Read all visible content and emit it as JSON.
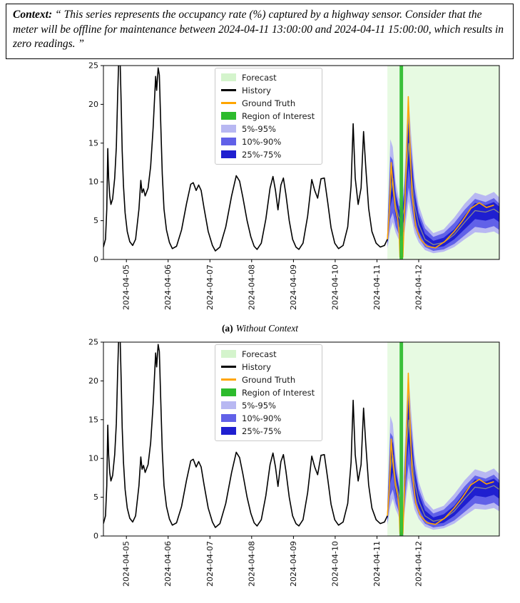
{
  "context": {
    "label": "Context:",
    "text": "“ This series represents the occupancy rate (%) captured by a highway sensor. Consider that the meter will be offline for maintenance between 2024-04-11 13:00:00 and 2024-04-11 15:00:00, which results in zero readings. ”"
  },
  "captions": {
    "a": {
      "label": "(a)",
      "text": "Without Context"
    }
  },
  "legend": {
    "items": [
      {
        "label": "Forecast",
        "type": "patch",
        "color": "#d4f4cc"
      },
      {
        "label": "History",
        "type": "line",
        "color": "#000000"
      },
      {
        "label": "Ground Truth",
        "type": "line",
        "color": "#ffa500"
      },
      {
        "label": "Region of Interest",
        "type": "patch",
        "color": "#2dbb2d"
      },
      {
        "label": "5%-95%",
        "type": "patch",
        "color": "#b8b8f2"
      },
      {
        "label": "10%-90%",
        "type": "patch",
        "color": "#6161e8"
      },
      {
        "label": "25%-75%",
        "type": "patch",
        "color": "#1f1fd0"
      }
    ]
  },
  "chart_data": {
    "type": "line",
    "shared": {
      "ylabel": "",
      "xlabel": "",
      "y_domain": [
        0,
        25
      ],
      "y_ticks": [
        0,
        5,
        10,
        15,
        20,
        25
      ],
      "x_domain": [
        0.45,
        9.93
      ],
      "x_ticks": [
        {
          "t": 1,
          "label": "2024-04-05"
        },
        {
          "t": 2,
          "label": "2024-04-06"
        },
        {
          "t": 3,
          "label": "2024-04-07"
        },
        {
          "t": 4,
          "label": "2024-04-08"
        },
        {
          "t": 5,
          "label": "2024-04-09"
        },
        {
          "t": 6,
          "label": "2024-04-10"
        },
        {
          "t": 7,
          "label": "2024-04-11"
        },
        {
          "t": 8,
          "label": "2024-04-12"
        }
      ],
      "forecast_span": [
        7.25,
        9.93
      ],
      "roi_span": [
        7.5417,
        7.625
      ],
      "colors": {
        "forecast_bg": "#e7fae2",
        "roi": "#2dbb2d",
        "history": "#000000",
        "ground_truth": "#ffa500",
        "q5_95": "#b8b8f2",
        "q10_90": "#6161e8",
        "q25_75": "#1f1fd0",
        "median": "#8a8a8a"
      },
      "history": [
        [
          0.45,
          1.6
        ],
        [
          0.5,
          2.6
        ],
        [
          0.53,
          6.5
        ],
        [
          0.555,
          14.3
        ],
        [
          0.575,
          10.5
        ],
        [
          0.6,
          8.2
        ],
        [
          0.63,
          7.1
        ],
        [
          0.67,
          7.8
        ],
        [
          0.72,
          10.5
        ],
        [
          0.76,
          14.5
        ],
        [
          0.79,
          21.0
        ],
        [
          0.815,
          25.6
        ],
        [
          0.85,
          25.6
        ],
        [
          0.875,
          20.0
        ],
        [
          0.9,
          14.0
        ],
        [
          0.93,
          9.5
        ],
        [
          0.97,
          6.0
        ],
        [
          1.02,
          3.6
        ],
        [
          1.08,
          2.3
        ],
        [
          1.15,
          1.8
        ],
        [
          1.22,
          2.6
        ],
        [
          1.3,
          6.5
        ],
        [
          1.345,
          10.2
        ],
        [
          1.375,
          8.6
        ],
        [
          1.41,
          9.1
        ],
        [
          1.45,
          8.2
        ],
        [
          1.52,
          9.2
        ],
        [
          1.58,
          12.0
        ],
        [
          1.64,
          17.0
        ],
        [
          1.7,
          23.6
        ],
        [
          1.725,
          21.8
        ],
        [
          1.76,
          24.7
        ],
        [
          1.79,
          23.8
        ],
        [
          1.82,
          18.0
        ],
        [
          1.86,
          11.0
        ],
        [
          1.9,
          6.5
        ],
        [
          1.96,
          3.8
        ],
        [
          2.03,
          2.2
        ],
        [
          2.1,
          1.4
        ],
        [
          2.2,
          1.7
        ],
        [
          2.32,
          3.8
        ],
        [
          2.44,
          7.2
        ],
        [
          2.54,
          9.7
        ],
        [
          2.6,
          9.9
        ],
        [
          2.67,
          8.9
        ],
        [
          2.73,
          9.6
        ],
        [
          2.79,
          8.9
        ],
        [
          2.86,
          6.6
        ],
        [
          2.96,
          3.6
        ],
        [
          3.06,
          1.8
        ],
        [
          3.13,
          1.1
        ],
        [
          3.24,
          1.6
        ],
        [
          3.38,
          4.2
        ],
        [
          3.52,
          8.2
        ],
        [
          3.63,
          10.8
        ],
        [
          3.71,
          10.1
        ],
        [
          3.79,
          8.0
        ],
        [
          3.89,
          5.0
        ],
        [
          3.98,
          2.9
        ],
        [
          4.06,
          1.7
        ],
        [
          4.13,
          1.3
        ],
        [
          4.23,
          2.1
        ],
        [
          4.34,
          5.2
        ],
        [
          4.44,
          9.2
        ],
        [
          4.51,
          10.7
        ],
        [
          4.57,
          8.9
        ],
        [
          4.63,
          6.4
        ],
        [
          4.7,
          9.6
        ],
        [
          4.76,
          10.5
        ],
        [
          4.82,
          8.4
        ],
        [
          4.9,
          5.0
        ],
        [
          4.98,
          2.6
        ],
        [
          5.06,
          1.6
        ],
        [
          5.13,
          1.3
        ],
        [
          5.23,
          2.1
        ],
        [
          5.34,
          5.6
        ],
        [
          5.44,
          10.3
        ],
        [
          5.51,
          8.9
        ],
        [
          5.58,
          7.9
        ],
        [
          5.66,
          10.4
        ],
        [
          5.74,
          10.5
        ],
        [
          5.82,
          7.4
        ],
        [
          5.9,
          4.1
        ],
        [
          5.99,
          2.1
        ],
        [
          6.08,
          1.4
        ],
        [
          6.19,
          1.8
        ],
        [
          6.3,
          4.2
        ],
        [
          6.38,
          9.5
        ],
        [
          6.43,
          17.5
        ],
        [
          6.48,
          10.5
        ],
        [
          6.55,
          7.1
        ],
        [
          6.62,
          9.2
        ],
        [
          6.68,
          16.5
        ],
        [
          6.73,
          12.0
        ],
        [
          6.8,
          6.6
        ],
        [
          6.88,
          3.6
        ],
        [
          6.98,
          2.1
        ],
        [
          7.08,
          1.6
        ],
        [
          7.18,
          1.8
        ],
        [
          7.25,
          2.6
        ]
      ],
      "ground_truth": [
        [
          7.25,
          2.6
        ],
        [
          7.3,
          6.5
        ],
        [
          7.34,
          12.5
        ],
        [
          7.39,
          9.0
        ],
        [
          7.44,
          6.6
        ],
        [
          7.5,
          5.1
        ],
        [
          7.53,
          3.5
        ],
        [
          7.55,
          0.3
        ],
        [
          7.62,
          0.3
        ],
        [
          7.66,
          6.0
        ],
        [
          7.71,
          13.5
        ],
        [
          7.75,
          21.0
        ],
        [
          7.79,
          15.0
        ],
        [
          7.84,
          8.5
        ],
        [
          7.93,
          4.2
        ],
        [
          8.04,
          2.6
        ],
        [
          8.2,
          1.7
        ],
        [
          8.4,
          1.5
        ],
        [
          8.62,
          2.3
        ],
        [
          8.85,
          3.6
        ],
        [
          9.05,
          5.0
        ],
        [
          9.25,
          6.6
        ],
        [
          9.45,
          7.3
        ],
        [
          9.62,
          6.7
        ],
        [
          9.8,
          7.0
        ]
      ]
    },
    "charts": [
      {
        "name": "without_context",
        "caption": "(a) Without Context",
        "forecast": {
          "t": [
            7.25,
            7.32,
            7.38,
            7.45,
            7.52,
            7.58,
            7.65,
            7.71,
            7.76,
            7.82,
            7.9,
            8.0,
            8.15,
            8.35,
            8.6,
            8.85,
            9.1,
            9.35,
            9.6,
            9.8,
            9.93
          ],
          "median": [
            2.6,
            8.5,
            10.5,
            7.0,
            5.5,
            5.0,
            6.5,
            11.5,
            15.0,
            11.0,
            7.0,
            4.5,
            2.6,
            1.9,
            2.2,
            3.2,
            4.8,
            6.3,
            6.1,
            6.5,
            6.0
          ],
          "q5": [
            1.4,
            3.8,
            4.8,
            3.4,
            2.6,
            2.3,
            3.0,
            5.5,
            7.5,
            5.5,
            3.4,
            2.2,
            1.2,
            0.8,
            1.0,
            1.6,
            2.6,
            3.5,
            3.4,
            3.6,
            3.2
          ],
          "q95": [
            4.3,
            15.5,
            14.5,
            10.0,
            8.0,
            7.4,
            9.8,
            17.0,
            20.5,
            16.0,
            10.5,
            7.0,
            4.6,
            3.4,
            3.9,
            5.4,
            7.2,
            8.6,
            8.2,
            8.7,
            8.0
          ],
          "q10": [
            1.7,
            5.2,
            6.0,
            4.2,
            3.3,
            2.9,
            3.8,
            7.0,
            9.3,
            7.0,
            4.3,
            2.8,
            1.6,
            1.1,
            1.3,
            2.0,
            3.1,
            4.2,
            4.0,
            4.3,
            3.8
          ],
          "q90": [
            3.9,
            13.3,
            12.8,
            8.8,
            7.0,
            6.5,
            8.6,
            15.0,
            18.6,
            14.2,
            9.2,
            6.1,
            4.0,
            2.9,
            3.4,
            4.7,
            6.4,
            7.8,
            7.4,
            7.9,
            7.2
          ],
          "q25": [
            2.1,
            6.8,
            8.2,
            5.5,
            4.3,
            3.9,
            5.1,
            9.2,
            12.2,
            9.0,
            5.6,
            3.6,
            2.1,
            1.5,
            1.7,
            2.6,
            3.9,
            5.2,
            5.0,
            5.3,
            4.8
          ],
          "q75": [
            3.2,
            10.8,
            12.2,
            8.2,
            6.5,
            6.0,
            7.9,
            13.8,
            17.5,
            13.2,
            8.4,
            5.5,
            3.3,
            2.4,
            2.8,
            3.9,
            5.7,
            7.3,
            7.0,
            7.4,
            6.8
          ]
        }
      },
      {
        "name": "with_context",
        "forecast": {
          "t": [
            7.25,
            7.32,
            7.38,
            7.45,
            7.5,
            7.535,
            7.55,
            7.62,
            7.645,
            7.71,
            7.76,
            7.82,
            7.9,
            8.0,
            8.15,
            8.35,
            8.6,
            8.85,
            9.1,
            9.35,
            9.6,
            9.8,
            9.93
          ],
          "median": [
            2.6,
            8.5,
            10.5,
            7.0,
            5.8,
            5.0,
            0.1,
            0.1,
            5.0,
            11.5,
            15.0,
            11.0,
            7.0,
            4.5,
            2.6,
            1.9,
            2.2,
            3.2,
            4.8,
            6.3,
            6.1,
            6.5,
            6.0
          ],
          "q5": [
            1.4,
            3.8,
            4.8,
            3.4,
            2.8,
            2.2,
            0.0,
            0.0,
            2.0,
            5.5,
            7.5,
            5.5,
            3.4,
            2.2,
            1.2,
            0.8,
            1.0,
            1.6,
            2.6,
            3.5,
            3.4,
            3.6,
            3.2
          ],
          "q95": [
            4.3,
            15.5,
            14.5,
            10.0,
            8.3,
            7.2,
            0.6,
            0.6,
            8.8,
            17.0,
            20.5,
            16.0,
            10.5,
            7.0,
            4.6,
            3.4,
            3.9,
            5.4,
            7.2,
            8.6,
            8.2,
            8.7,
            8.0
          ],
          "q10": [
            1.7,
            5.2,
            6.0,
            4.2,
            3.5,
            2.8,
            0.0,
            0.0,
            2.6,
            7.0,
            9.3,
            7.0,
            4.3,
            2.8,
            1.6,
            1.1,
            1.3,
            2.0,
            3.1,
            4.2,
            4.0,
            4.3,
            3.8
          ],
          "q90": [
            3.9,
            13.3,
            12.8,
            8.8,
            7.3,
            6.3,
            0.4,
            0.4,
            7.6,
            15.0,
            18.6,
            14.2,
            9.2,
            6.1,
            4.0,
            2.9,
            3.4,
            4.7,
            6.4,
            7.8,
            7.4,
            7.9,
            7.2
          ],
          "q25": [
            2.1,
            6.8,
            8.2,
            5.5,
            4.6,
            3.7,
            0.0,
            0.0,
            3.6,
            9.2,
            12.2,
            9.0,
            5.6,
            3.6,
            2.1,
            1.5,
            1.7,
            2.6,
            3.9,
            5.2,
            5.0,
            5.3,
            4.8
          ],
          "q75": [
            3.2,
            10.8,
            12.2,
            8.2,
            6.8,
            5.9,
            0.3,
            0.3,
            6.6,
            13.8,
            17.5,
            13.2,
            8.4,
            5.5,
            3.3,
            2.4,
            2.8,
            3.9,
            5.7,
            7.3,
            7.0,
            7.4,
            6.8
          ]
        }
      }
    ]
  }
}
